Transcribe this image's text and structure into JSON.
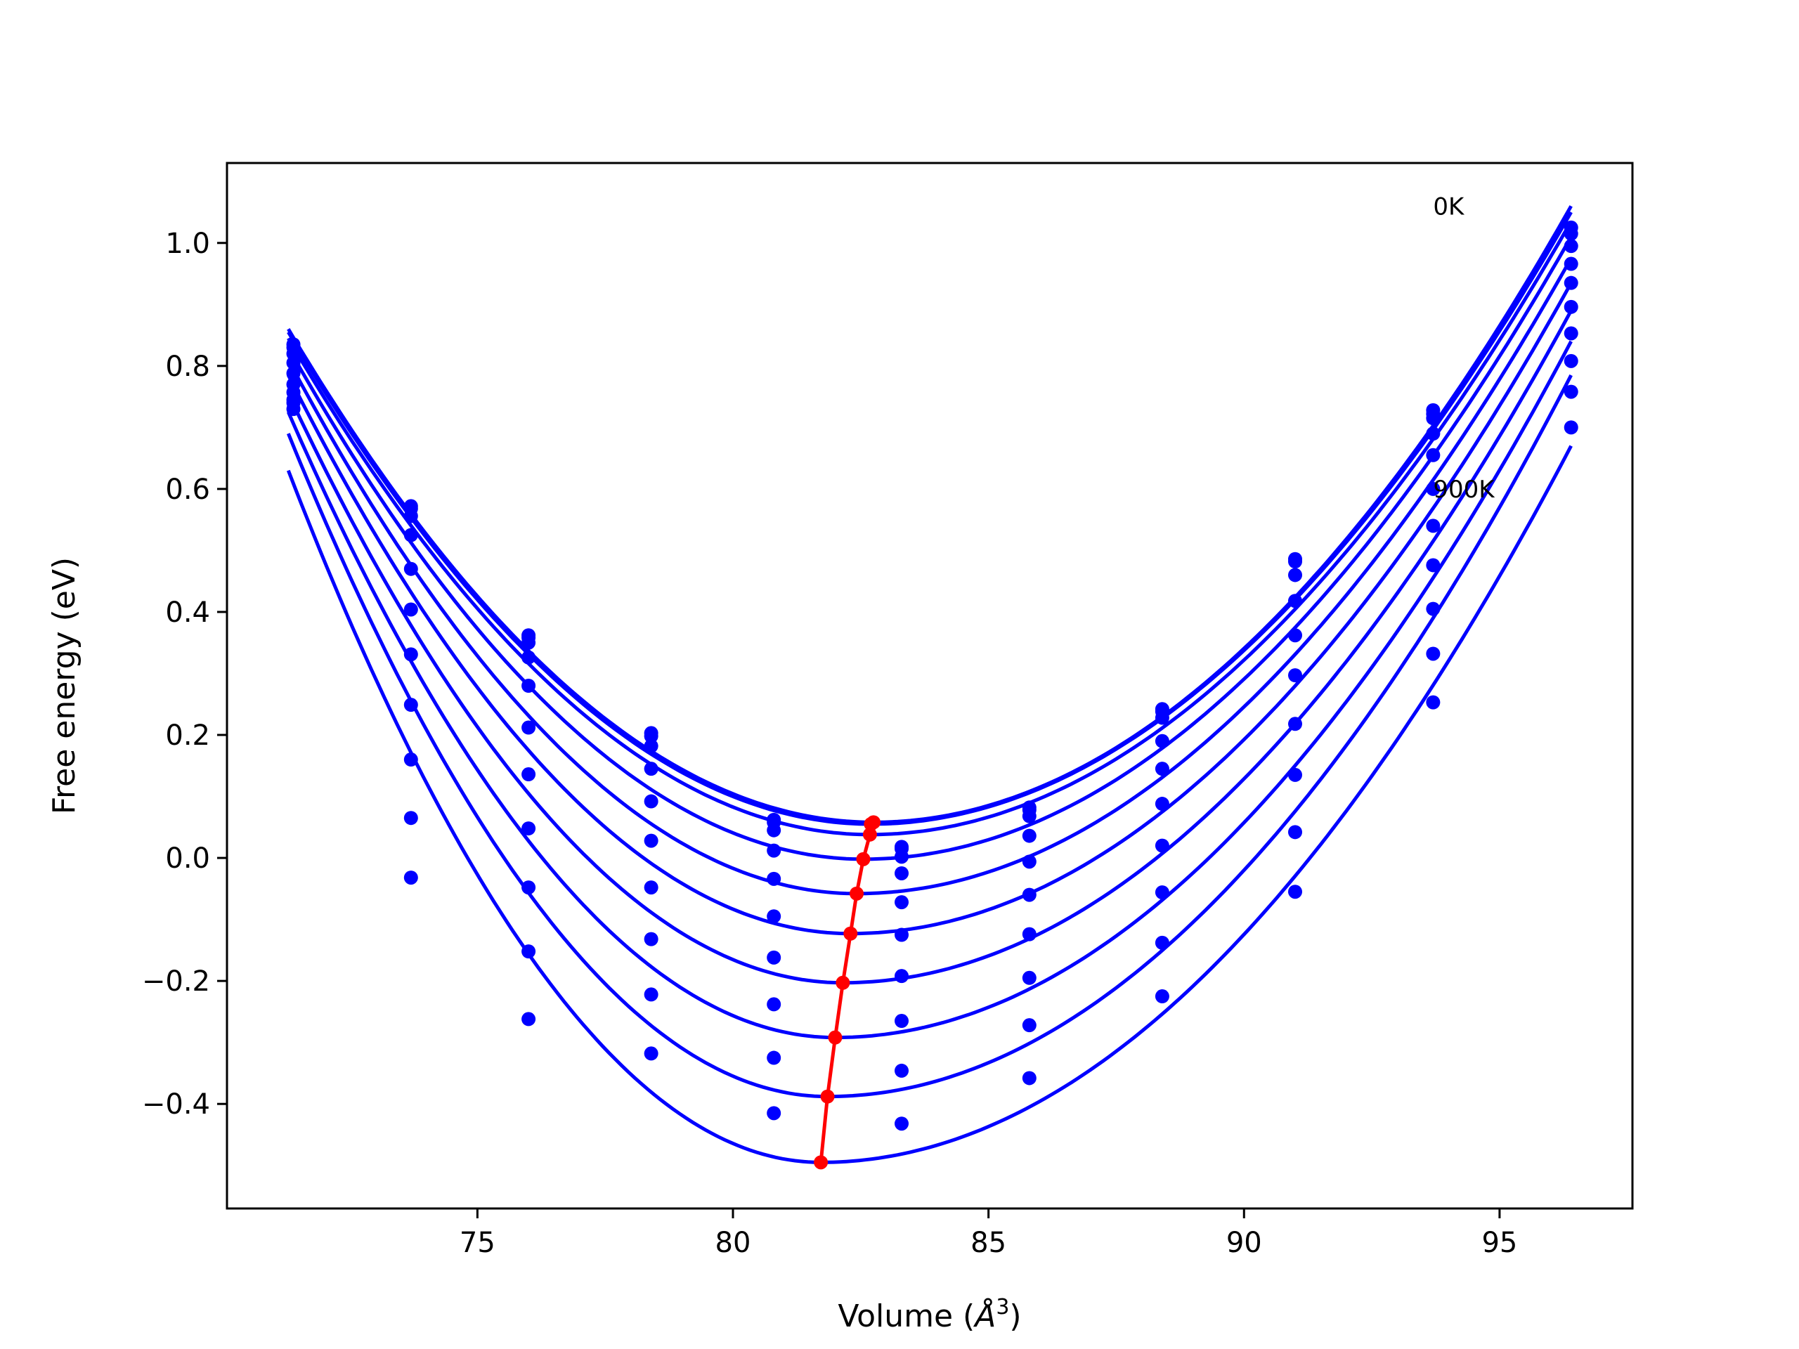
{
  "chart_data": {
    "type": "line",
    "title": "",
    "xlabel": "Volume (Å^3)",
    "xlabel_text": "Volume (",
    "xlabel_symbol": "Å",
    "xlabel_exp": "3",
    "xlabel_close": ")",
    "ylabel": "Free energy (eV)",
    "xlim": [
      70.1,
      97.6
    ],
    "ylim": [
      -0.57,
      1.13
    ],
    "xticks": [
      75,
      80,
      85,
      90,
      95
    ],
    "yticks": [
      -0.4,
      -0.2,
      0.0,
      0.2,
      0.4,
      0.6,
      0.8,
      1.0
    ],
    "ytick_labels": [
      "−0.4",
      "−0.2",
      "0.0",
      "0.2",
      "0.4",
      "0.6",
      "0.8",
      "1.0"
    ],
    "grid": false,
    "legend": "none",
    "colors": {
      "fit": "#0000ff",
      "points": "#0000ff",
      "minima": "#ff0000"
    },
    "annotations": [
      {
        "text": "0K",
        "x": 93.7,
        "y": 1.06
      },
      {
        "text": "900K",
        "x": 93.7,
        "y": 0.6
      }
    ],
    "volumes": [
      71.4,
      73.7,
      76.0,
      78.4,
      80.8,
      83.3,
      85.8,
      88.4,
      91.0,
      93.7,
      96.4
    ],
    "curve_range": [
      71.3,
      96.4
    ],
    "series": [
      {
        "min_volume": 82.75,
        "min_energy": 0.058,
        "left_end": 0.86,
        "right_end": 1.06,
        "points": [
          0.835,
          0.572,
          0.362,
          0.203,
          0.062,
          0.018,
          0.082,
          0.242,
          0.486,
          0.728,
          1.025
        ]
      },
      {
        "min_volume": 82.7,
        "min_energy": 0.055,
        "left_end": 0.855,
        "right_end": 1.05,
        "points": [
          0.83,
          0.568,
          0.358,
          0.198,
          0.058,
          0.015,
          0.078,
          0.238,
          0.482,
          0.722,
          1.015
        ]
      },
      {
        "min_volume": 82.68,
        "min_energy": 0.038,
        "left_end": 0.845,
        "right_end": 1.035,
        "points": [
          0.82,
          0.556,
          0.35,
          0.182,
          0.045,
          0.002,
          0.068,
          0.228,
          0.46,
          0.715,
          0.995
        ]
      },
      {
        "min_volume": 82.55,
        "min_energy": -0.002,
        "left_end": 0.83,
        "right_end": 1.01,
        "points": [
          0.805,
          0.525,
          0.326,
          0.145,
          0.012,
          -0.025,
          0.036,
          0.19,
          0.418,
          0.69,
          0.966
        ]
      },
      {
        "min_volume": 82.42,
        "min_energy": -0.058,
        "left_end": 0.81,
        "right_end": 0.975,
        "points": [
          0.788,
          0.47,
          0.28,
          0.092,
          -0.034,
          -0.072,
          -0.006,
          0.145,
          0.362,
          0.655,
          0.935
        ]
      },
      {
        "min_volume": 82.3,
        "min_energy": -0.123,
        "left_end": 0.785,
        "right_end": 0.935,
        "points": [
          0.77,
          0.404,
          0.212,
          0.028,
          -0.095,
          -0.125,
          -0.06,
          0.088,
          0.297,
          0.6,
          0.896
        ]
      },
      {
        "min_volume": 82.15,
        "min_energy": -0.203,
        "left_end": 0.755,
        "right_end": 0.89,
        "points": [
          0.757,
          0.331,
          0.136,
          -0.048,
          -0.162,
          -0.192,
          -0.124,
          0.02,
          0.218,
          0.54,
          0.853
        ]
      },
      {
        "min_volume": 82.0,
        "min_energy": -0.292,
        "left_end": 0.725,
        "right_end": 0.84,
        "points": [
          0.745,
          0.249,
          0.048,
          -0.132,
          -0.238,
          -0.265,
          -0.195,
          -0.056,
          0.135,
          0.476,
          0.808
        ]
      },
      {
        "min_volume": 81.85,
        "min_energy": -0.388,
        "left_end": 0.69,
        "right_end": 0.785,
        "points": [
          0.74,
          0.16,
          -0.048,
          -0.222,
          -0.325,
          -0.346,
          -0.272,
          -0.138,
          0.042,
          0.405,
          0.758
        ]
      },
      {
        "min_volume": 81.72,
        "min_energy": -0.495,
        "left_end": 0.63,
        "right_end": 0.67,
        "points": [
          0.73,
          0.065,
          -0.152,
          -0.318,
          -0.415,
          -0.432,
          -0.358,
          -0.225,
          -0.055,
          0.332,
          0.7
        ]
      },
      {
        "min_volume": null,
        "min_energy": null,
        "left_end": null,
        "right_end": null,
        "points": [
          null,
          -0.032,
          -0.262,
          null,
          null,
          null,
          null,
          null,
          null,
          0.253,
          null
        ]
      }
    ],
    "minima": {
      "x": [
        82.75,
        82.7,
        82.68,
        82.55,
        82.42,
        82.3,
        82.15,
        82.0,
        81.85,
        81.72
      ],
      "y": [
        0.058,
        0.055,
        0.038,
        -0.002,
        -0.058,
        -0.123,
        -0.203,
        -0.292,
        -0.388,
        -0.495
      ]
    }
  }
}
